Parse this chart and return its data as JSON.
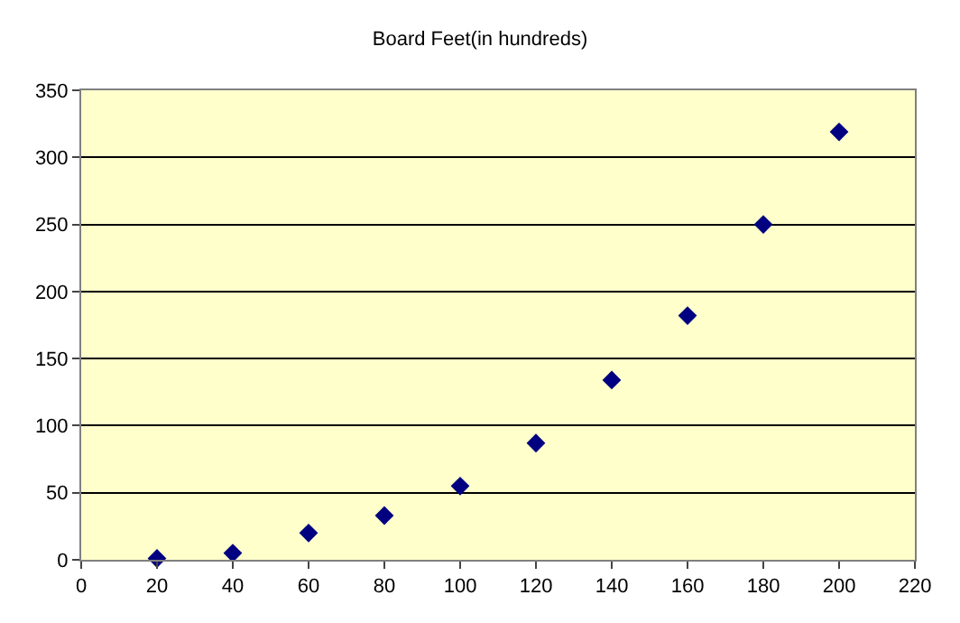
{
  "chart_data": {
    "type": "scatter",
    "title": "Board Feet(in hundreds)",
    "x": [
      20,
      40,
      60,
      80,
      100,
      120,
      140,
      160,
      180,
      200
    ],
    "series": [
      {
        "color": "#000080",
        "values": [
          1,
          5,
          20,
          33,
          55,
          87,
          134,
          182,
          250,
          319
        ]
      }
    ],
    "xlim": [
      0,
      220
    ],
    "xticks": [
      0,
      20,
      40,
      60,
      80,
      100,
      120,
      140,
      160,
      180,
      200,
      220
    ],
    "ylim": [
      0,
      350
    ],
    "yticks": [
      0,
      50,
      100,
      150,
      200,
      250,
      300,
      350
    ],
    "grid": "y",
    "marker": "diamond",
    "legend": false
  }
}
